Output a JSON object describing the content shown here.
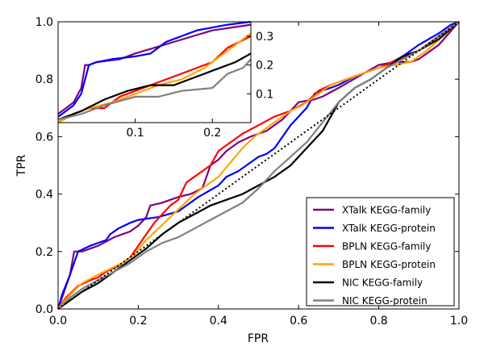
{
  "chart_data": [
    {
      "type": "line",
      "role": "main",
      "xlabel": "FPR",
      "ylabel": "TPR",
      "xlim": [
        0,
        1
      ],
      "ylim": [
        0,
        1
      ],
      "xticks": [
        "0.0",
        "0.2",
        "0.4",
        "0.6",
        "0.8",
        "1.0"
      ],
      "yticks": [
        "0.0",
        "0.2",
        "0.4",
        "0.6",
        "0.8",
        "1.0"
      ],
      "grid": false,
      "legend": "lower-right",
      "series": [
        {
          "name": "XTalk KEGG-family",
          "color": "#800080",
          "points": [
            [
              0,
              0
            ],
            [
              0.01,
              0.04
            ],
            [
              0.02,
              0.08
            ],
            [
              0.03,
              0.12
            ],
            [
              0.04,
              0.2
            ],
            [
              0.06,
              0.2
            ],
            [
              0.08,
              0.21
            ],
            [
              0.1,
              0.22
            ],
            [
              0.14,
              0.25
            ],
            [
              0.18,
              0.27
            ],
            [
              0.2,
              0.29
            ],
            [
              0.22,
              0.32
            ],
            [
              0.23,
              0.36
            ],
            [
              0.26,
              0.37
            ],
            [
              0.28,
              0.38
            ],
            [
              0.3,
              0.39
            ],
            [
              0.33,
              0.4
            ],
            [
              0.36,
              0.42
            ],
            [
              0.38,
              0.5
            ],
            [
              0.4,
              0.52
            ],
            [
              0.42,
              0.55
            ],
            [
              0.45,
              0.58
            ],
            [
              0.48,
              0.6
            ],
            [
              0.52,
              0.62
            ],
            [
              0.56,
              0.66
            ],
            [
              0.6,
              0.72
            ],
            [
              0.64,
              0.73
            ],
            [
              0.66,
              0.74
            ],
            [
              0.7,
              0.77
            ],
            [
              0.75,
              0.81
            ],
            [
              0.8,
              0.85
            ],
            [
              0.84,
              0.86
            ],
            [
              0.88,
              0.86
            ],
            [
              0.9,
              0.87
            ],
            [
              0.95,
              0.92
            ],
            [
              1,
              1
            ]
          ]
        },
        {
          "name": "XTalk KEGG-protein",
          "color": "#0000ff",
          "points": [
            [
              0,
              0
            ],
            [
              0.01,
              0.05
            ],
            [
              0.03,
              0.12
            ],
            [
              0.05,
              0.2
            ],
            [
              0.08,
              0.22
            ],
            [
              0.1,
              0.23
            ],
            [
              0.12,
              0.24
            ],
            [
              0.13,
              0.26
            ],
            [
              0.15,
              0.28
            ],
            [
              0.18,
              0.3
            ],
            [
              0.2,
              0.31
            ],
            [
              0.25,
              0.32
            ],
            [
              0.3,
              0.34
            ],
            [
              0.35,
              0.39
            ],
            [
              0.4,
              0.43
            ],
            [
              0.42,
              0.46
            ],
            [
              0.45,
              0.48
            ],
            [
              0.48,
              0.51
            ],
            [
              0.5,
              0.53
            ],
            [
              0.52,
              0.54
            ],
            [
              0.54,
              0.56
            ],
            [
              0.56,
              0.6
            ],
            [
              0.58,
              0.64
            ],
            [
              0.6,
              0.67
            ],
            [
              0.62,
              0.7
            ],
            [
              0.64,
              0.75
            ],
            [
              0.66,
              0.76
            ],
            [
              0.7,
              0.78
            ],
            [
              0.74,
              0.81
            ],
            [
              0.78,
              0.83
            ],
            [
              0.82,
              0.85
            ],
            [
              0.86,
              0.88
            ],
            [
              0.9,
              0.92
            ],
            [
              0.95,
              0.96
            ],
            [
              0.98,
              0.99
            ],
            [
              1,
              1
            ]
          ]
        },
        {
          "name": "BPLN KEGG-family",
          "color": "#ff0000",
          "points": [
            [
              0,
              0
            ],
            [
              0.02,
              0.04
            ],
            [
              0.05,
              0.08
            ],
            [
              0.08,
              0.1
            ],
            [
              0.1,
              0.11
            ],
            [
              0.12,
              0.13
            ],
            [
              0.15,
              0.15
            ],
            [
              0.18,
              0.18
            ],
            [
              0.2,
              0.22
            ],
            [
              0.22,
              0.26
            ],
            [
              0.24,
              0.3
            ],
            [
              0.26,
              0.33
            ],
            [
              0.28,
              0.36
            ],
            [
              0.3,
              0.38
            ],
            [
              0.32,
              0.44
            ],
            [
              0.34,
              0.46
            ],
            [
              0.36,
              0.48
            ],
            [
              0.38,
              0.5
            ],
            [
              0.4,
              0.55
            ],
            [
              0.43,
              0.58
            ],
            [
              0.46,
              0.61
            ],
            [
              0.5,
              0.64
            ],
            [
              0.54,
              0.67
            ],
            [
              0.58,
              0.69
            ],
            [
              0.62,
              0.72
            ],
            [
              0.65,
              0.76
            ],
            [
              0.68,
              0.78
            ],
            [
              0.72,
              0.8
            ],
            [
              0.76,
              0.82
            ],
            [
              0.8,
              0.84
            ],
            [
              0.85,
              0.87
            ],
            [
              0.9,
              0.9
            ],
            [
              0.95,
              0.95
            ],
            [
              1,
              1
            ]
          ]
        },
        {
          "name": "BPLN KEGG-protein",
          "color": "#ffa500",
          "points": [
            [
              0,
              0
            ],
            [
              0.03,
              0.05
            ],
            [
              0.06,
              0.09
            ],
            [
              0.1,
              0.12
            ],
            [
              0.13,
              0.14
            ],
            [
              0.16,
              0.16
            ],
            [
              0.19,
              0.19
            ],
            [
              0.22,
              0.24
            ],
            [
              0.25,
              0.28
            ],
            [
              0.28,
              0.32
            ],
            [
              0.31,
              0.36
            ],
            [
              0.34,
              0.4
            ],
            [
              0.37,
              0.43
            ],
            [
              0.4,
              0.46
            ],
            [
              0.43,
              0.51
            ],
            [
              0.46,
              0.56
            ],
            [
              0.49,
              0.6
            ],
            [
              0.52,
              0.63
            ],
            [
              0.55,
              0.66
            ],
            [
              0.58,
              0.69
            ],
            [
              0.61,
              0.71
            ],
            [
              0.64,
              0.74
            ],
            [
              0.68,
              0.78
            ],
            [
              0.72,
              0.8
            ],
            [
              0.76,
              0.82
            ],
            [
              0.8,
              0.84
            ],
            [
              0.84,
              0.85
            ],
            [
              0.88,
              0.86
            ],
            [
              0.92,
              0.9
            ],
            [
              0.96,
              0.95
            ],
            [
              1,
              1
            ]
          ]
        },
        {
          "name": "NIC KEGG-family",
          "color": "#000000",
          "points": [
            [
              0,
              0
            ],
            [
              0.03,
              0.03
            ],
            [
              0.06,
              0.06
            ],
            [
              0.1,
              0.09
            ],
            [
              0.14,
              0.13
            ],
            [
              0.18,
              0.17
            ],
            [
              0.22,
              0.21
            ],
            [
              0.26,
              0.26
            ],
            [
              0.3,
              0.3
            ],
            [
              0.34,
              0.33
            ],
            [
              0.38,
              0.36
            ],
            [
              0.42,
              0.38
            ],
            [
              0.46,
              0.4
            ],
            [
              0.5,
              0.43
            ],
            [
              0.54,
              0.46
            ],
            [
              0.58,
              0.5
            ],
            [
              0.62,
              0.56
            ],
            [
              0.66,
              0.62
            ],
            [
              0.7,
              0.72
            ],
            [
              0.74,
              0.77
            ],
            [
              0.78,
              0.8
            ],
            [
              0.82,
              0.84
            ],
            [
              0.86,
              0.88
            ],
            [
              0.9,
              0.9
            ],
            [
              0.95,
              0.94
            ],
            [
              1,
              1
            ]
          ]
        },
        {
          "name": "NIC KEGG-protein",
          "color": "#808080",
          "points": [
            [
              0,
              0
            ],
            [
              0.03,
              0.04
            ],
            [
              0.06,
              0.07
            ],
            [
              0.1,
              0.1
            ],
            [
              0.14,
              0.13
            ],
            [
              0.18,
              0.16
            ],
            [
              0.22,
              0.2
            ],
            [
              0.26,
              0.23
            ],
            [
              0.3,
              0.25
            ],
            [
              0.34,
              0.28
            ],
            [
              0.38,
              0.31
            ],
            [
              0.42,
              0.34
            ],
            [
              0.46,
              0.37
            ],
            [
              0.5,
              0.42
            ],
            [
              0.54,
              0.48
            ],
            [
              0.58,
              0.53
            ],
            [
              0.62,
              0.58
            ],
            [
              0.66,
              0.65
            ],
            [
              0.7,
              0.72
            ],
            [
              0.74,
              0.77
            ],
            [
              0.78,
              0.8
            ],
            [
              0.82,
              0.84
            ],
            [
              0.86,
              0.87
            ],
            [
              0.9,
              0.9
            ],
            [
              0.95,
              0.95
            ],
            [
              1,
              1
            ]
          ]
        }
      ],
      "reference_line": {
        "style": "dotted",
        "color": "#000000",
        "points": [
          [
            0,
            0
          ],
          [
            1,
            1
          ]
        ]
      }
    },
    {
      "type": "line",
      "role": "inset",
      "xlim": [
        0,
        0.25
      ],
      "ylim": [
        0,
        0.35
      ],
      "xticks": [
        "0.1",
        "0.2"
      ],
      "yticks": [
        "0.1",
        "0.2",
        "0.3"
      ],
      "series": [
        {
          "name": "XTalk KEGG-family",
          "color": "#800080",
          "points": [
            [
              0,
              0.03
            ],
            [
              0.01,
              0.05
            ],
            [
              0.02,
              0.07
            ],
            [
              0.03,
              0.12
            ],
            [
              0.035,
              0.2
            ],
            [
              0.04,
              0.2
            ],
            [
              0.05,
              0.21
            ],
            [
              0.08,
              0.22
            ],
            [
              0.1,
              0.24
            ],
            [
              0.15,
              0.28
            ],
            [
              0.2,
              0.32
            ],
            [
              0.25,
              0.34
            ]
          ]
        },
        {
          "name": "XTalk KEGG-protein",
          "color": "#0000ff",
          "points": [
            [
              0,
              0.02
            ],
            [
              0.01,
              0.04
            ],
            [
              0.02,
              0.06
            ],
            [
              0.03,
              0.1
            ],
            [
              0.04,
              0.2
            ],
            [
              0.05,
              0.21
            ],
            [
              0.07,
              0.22
            ],
            [
              0.1,
              0.23
            ],
            [
              0.12,
              0.24
            ],
            [
              0.14,
              0.28
            ],
            [
              0.18,
              0.32
            ],
            [
              0.2,
              0.33
            ],
            [
              0.22,
              0.34
            ],
            [
              0.25,
              0.35
            ]
          ]
        },
        {
          "name": "BPLN KEGG-family",
          "color": "#ff0000",
          "points": [
            [
              0,
              0
            ],
            [
              0.02,
              0.03
            ],
            [
              0.04,
              0.05
            ],
            [
              0.06,
              0.05
            ],
            [
              0.08,
              0.09
            ],
            [
              0.1,
              0.11
            ],
            [
              0.12,
              0.13
            ],
            [
              0.15,
              0.16
            ],
            [
              0.18,
              0.19
            ],
            [
              0.2,
              0.21
            ],
            [
              0.22,
              0.26
            ],
            [
              0.25,
              0.3
            ]
          ]
        },
        {
          "name": "BPLN KEGG-protein",
          "color": "#ffa500",
          "points": [
            [
              0,
              0
            ],
            [
              0.02,
              0.03
            ],
            [
              0.04,
              0.05
            ],
            [
              0.07,
              0.07
            ],
            [
              0.1,
              0.1
            ],
            [
              0.13,
              0.13
            ],
            [
              0.16,
              0.15
            ],
            [
              0.19,
              0.19
            ],
            [
              0.22,
              0.25
            ],
            [
              0.25,
              0.31
            ]
          ]
        },
        {
          "name": "NIC KEGG-family",
          "color": "#000000",
          "points": [
            [
              0,
              0.01
            ],
            [
              0.03,
              0.04
            ],
            [
              0.06,
              0.08
            ],
            [
              0.09,
              0.11
            ],
            [
              0.12,
              0.13
            ],
            [
              0.15,
              0.13
            ],
            [
              0.18,
              0.16
            ],
            [
              0.2,
              0.18
            ],
            [
              0.23,
              0.21
            ],
            [
              0.25,
              0.24
            ]
          ]
        },
        {
          "name": "NIC KEGG-protein",
          "color": "#808080",
          "points": [
            [
              0,
              0.01
            ],
            [
              0.03,
              0.03
            ],
            [
              0.06,
              0.06
            ],
            [
              0.1,
              0.09
            ],
            [
              0.13,
              0.09
            ],
            [
              0.16,
              0.11
            ],
            [
              0.2,
              0.12
            ],
            [
              0.22,
              0.17
            ],
            [
              0.24,
              0.19
            ],
            [
              0.25,
              0.22
            ]
          ]
        }
      ]
    }
  ]
}
